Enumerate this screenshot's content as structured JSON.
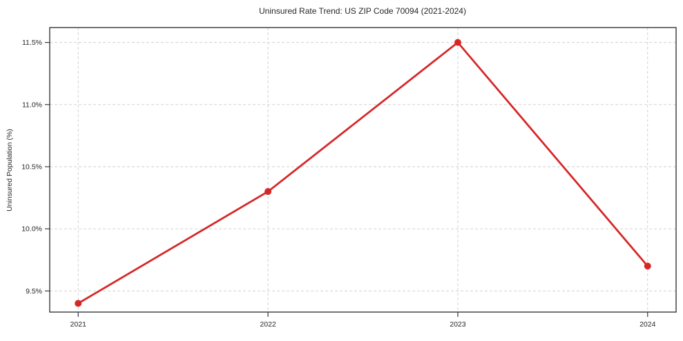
{
  "chart_data": {
    "type": "line",
    "title": "Uninsured Rate Trend: US ZIP Code 70094 (2021-2024)",
    "xlabel": "",
    "ylabel": "Uninsured Population (%)",
    "categories": [
      "2021",
      "2022",
      "2023",
      "2024"
    ],
    "series": [
      {
        "name": "Uninsured Rate",
        "values": [
          9.4,
          10.3,
          11.5,
          9.7
        ]
      }
    ],
    "yticks": [
      9.5,
      10.0,
      10.5,
      11.0,
      11.5
    ],
    "ytick_labels": [
      "9.5%",
      "10.0%",
      "10.5%",
      "11.0%",
      "11.5%"
    ],
    "ylim": [
      9.33,
      11.62
    ],
    "grid": true,
    "legend": "none",
    "colors": {
      "line": "#d62728",
      "marker": "#d62728",
      "grid": "#cccccc",
      "axis": "#262626",
      "background": "#ffffff"
    }
  }
}
